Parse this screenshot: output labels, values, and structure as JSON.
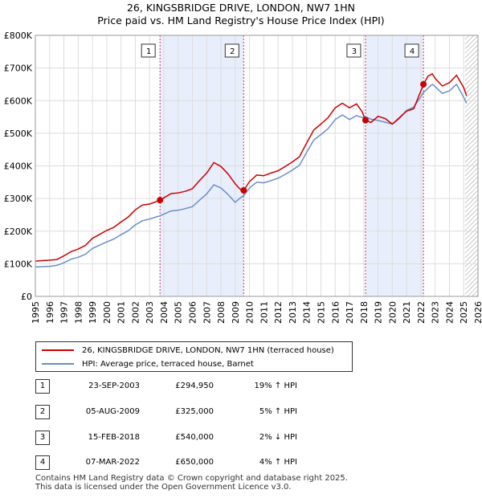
{
  "title": {
    "line1": "26, KINGSBRIDGE DRIVE, LONDON, NW7 1HN",
    "line2": "Price paid vs. HM Land Registry's House Price Index (HPI)"
  },
  "legend": {
    "property_label": "26, KINGSBRIDGE DRIVE, LONDON, NW7 1HN (terraced house)",
    "hpi_label": "HPI: Average price, terraced house, Barnet"
  },
  "colors": {
    "property": "#cc0000",
    "hpi": "#6a8fc8",
    "shade": "#e8eefb",
    "grid": "#dddddd",
    "marker_line": "#cc3355",
    "hatch": "#888888"
  },
  "sales": [
    {
      "num": "1",
      "date": "23-SEP-2003",
      "price": "£294,950",
      "hpi": "19% ↑ HPI"
    },
    {
      "num": "2",
      "date": "05-AUG-2009",
      "price": "£325,000",
      "hpi": "5% ↑ HPI"
    },
    {
      "num": "3",
      "date": "15-FEB-2018",
      "price": "£540,000",
      "hpi": "2% ↓ HPI"
    },
    {
      "num": "4",
      "date": "07-MAR-2022",
      "price": "£650,000",
      "hpi": "4% ↑ HPI"
    }
  ],
  "footer": {
    "line1": "Contains HM Land Registry data © Crown copyright and database right 2025.",
    "line2": "This data is licensed under the Open Government Licence v3.0."
  },
  "chart_data": {
    "type": "line",
    "title": "26, KINGSBRIDGE DRIVE, LONDON, NW7 1HN",
    "subtitle": "Price paid vs. HM Land Registry's House Price Index (HPI)",
    "xlabel": "",
    "ylabel": "",
    "xlim": [
      1995,
      2026
    ],
    "ylim": [
      0,
      800000
    ],
    "y_ticks": [
      0,
      100000,
      200000,
      300000,
      400000,
      500000,
      600000,
      700000,
      800000
    ],
    "y_tick_labels": [
      "£0",
      "£100K",
      "£200K",
      "£300K",
      "£400K",
      "£500K",
      "£600K",
      "£700K",
      "£800K"
    ],
    "x_ticks": [
      1995,
      1996,
      1997,
      1998,
      1999,
      2000,
      2001,
      2002,
      2003,
      2004,
      2005,
      2006,
      2007,
      2008,
      2009,
      2010,
      2011,
      2012,
      2013,
      2014,
      2015,
      2016,
      2017,
      2018,
      2019,
      2020,
      2021,
      2022,
      2023,
      2024,
      2025,
      2026
    ],
    "grid": true,
    "shaded_periods": [
      [
        2003.73,
        2009.59
      ],
      [
        2018.12,
        2022.18
      ]
    ],
    "forecast_start": 2025.1,
    "series": [
      {
        "name": "26, KINGSBRIDGE DRIVE, LONDON, NW7 1HN (terraced house)",
        "x": [
          1995,
          1996,
          1996.5,
          1997,
          1997.5,
          1998,
          1998.5,
          1999,
          1999.5,
          2000,
          2000.5,
          2001,
          2001.5,
          2002,
          2002.5,
          2003,
          2003.5,
          2003.73,
          2004,
          2004.5,
          2005,
          2005.5,
          2006,
          2006.5,
          2007,
          2007.5,
          2008,
          2008.5,
          2009,
          2009.3,
          2009.59,
          2010,
          2010.5,
          2011,
          2011.5,
          2012,
          2012.5,
          2013,
          2013.5,
          2014,
          2014.5,
          2015,
          2015.5,
          2016,
          2016.5,
          2017,
          2017.5,
          2017.9,
          2018.12,
          2018.5,
          2019,
          2019.5,
          2020,
          2020.5,
          2021,
          2021.5,
          2022,
          2022.18,
          2022.5,
          2022.8,
          2023,
          2023.5,
          2024,
          2024.5,
          2025,
          2025.2
        ],
        "y": [
          108000,
          111000,
          113000,
          124000,
          137000,
          145000,
          156000,
          178000,
          190000,
          202000,
          212000,
          228000,
          243000,
          265000,
          280000,
          283000,
          291000,
          294950,
          302000,
          315000,
          317000,
          322000,
          330000,
          355000,
          378000,
          410000,
          398000,
          375000,
          345000,
          330000,
          325000,
          352000,
          372000,
          370000,
          378000,
          385000,
          398000,
          412000,
          428000,
          470000,
          510000,
          528000,
          548000,
          578000,
          592000,
          578000,
          590000,
          565000,
          540000,
          533000,
          552000,
          545000,
          528000,
          548000,
          568000,
          575000,
          630000,
          650000,
          675000,
          682000,
          668000,
          645000,
          655000,
          678000,
          640000,
          615000
        ]
      },
      {
        "name": "HPI: Average price, terraced house, Barnet",
        "x": [
          1995,
          1996,
          1996.5,
          1997,
          1997.5,
          1998,
          1998.5,
          1999,
          1999.5,
          2000,
          2000.5,
          2001,
          2001.5,
          2002,
          2002.5,
          2003,
          2003.5,
          2003.73,
          2004,
          2004.5,
          2005,
          2005.5,
          2006,
          2006.5,
          2007,
          2007.5,
          2008,
          2008.5,
          2009,
          2009.3,
          2009.59,
          2010,
          2010.5,
          2011,
          2011.5,
          2012,
          2012.5,
          2013,
          2013.5,
          2014,
          2014.5,
          2015,
          2015.5,
          2016,
          2016.5,
          2017,
          2017.5,
          2017.9,
          2018.12,
          2018.5,
          2019,
          2019.5,
          2020,
          2020.5,
          2021,
          2021.5,
          2022,
          2022.18,
          2022.5,
          2022.8,
          2023,
          2023.5,
          2024,
          2024.5,
          2025,
          2025.2
        ],
        "y": [
          90000,
          92000,
          95000,
          103000,
          114000,
          120000,
          129000,
          147000,
          157000,
          167000,
          176000,
          189000,
          201000,
          219000,
          232000,
          237000,
          244000,
          247000,
          252000,
          262000,
          264000,
          269000,
          275000,
          295000,
          314000,
          342000,
          332000,
          312000,
          288000,
          300000,
          309000,
          332000,
          350000,
          348000,
          355000,
          362000,
          374000,
          387000,
          402000,
          441000,
          479000,
          496000,
          514000,
          542000,
          556000,
          542000,
          554000,
          548000,
          551000,
          543000,
          539000,
          534000,
          528000,
          545000,
          570000,
          580000,
          612000,
          625000,
          638000,
          650000,
          643000,
          622000,
          630000,
          650000,
          610000,
          592000
        ]
      }
    ],
    "sale_markers": [
      {
        "label": "1",
        "x": 2003.73,
        "y": 294950
      },
      {
        "label": "2",
        "x": 2009.59,
        "y": 325000
      },
      {
        "label": "3",
        "x": 2018.12,
        "y": 540000
      },
      {
        "label": "4",
        "x": 2022.18,
        "y": 650000
      }
    ]
  }
}
